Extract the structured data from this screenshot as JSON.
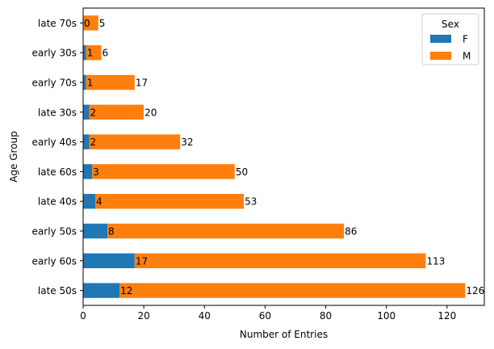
{
  "chart_data": {
    "type": "bar",
    "orientation": "horizontal",
    "stacked": true,
    "categories": [
      "late 50s",
      "early 60s",
      "early 50s",
      "late 40s",
      "late 60s",
      "early 40s",
      "late 30s",
      "early 70s",
      "early 30s",
      "late 70s"
    ],
    "series": [
      {
        "name": "F",
        "color": "#1f77b4",
        "values": [
          12,
          17,
          8,
          4,
          3,
          2,
          2,
          1,
          1,
          0
        ]
      },
      {
        "name": "M",
        "color": "#ff7f0e",
        "values": [
          114,
          96,
          78,
          49,
          47,
          30,
          18,
          16,
          5,
          5
        ]
      }
    ],
    "labels": {
      "F": [
        "12",
        "17",
        "8",
        "4",
        "3",
        "2",
        "2",
        "1",
        "1",
        "0"
      ],
      "M": [
        "126",
        "113",
        "86",
        "53",
        "50",
        "32",
        "20",
        "17",
        "6",
        "5"
      ]
    },
    "xlabel": "Number of Entries",
    "ylabel": "Age Group",
    "xlim": [
      0,
      132.3
    ],
    "xticks": [
      0,
      20,
      40,
      60,
      80,
      100,
      120
    ],
    "legend": {
      "title": "Sex",
      "position": "top-right"
    },
    "grid": false
  }
}
